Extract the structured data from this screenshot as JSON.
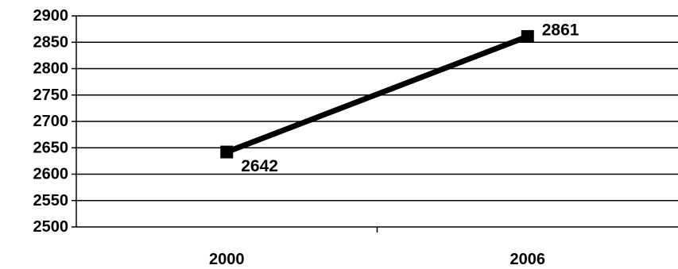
{
  "chart_data": {
    "type": "line",
    "title": "",
    "xlabel": "",
    "ylabel": "",
    "categories": [
      "2000",
      "2006"
    ],
    "series": [
      {
        "values": [
          2642,
          2861
        ],
        "color": "#000000",
        "marker": "square"
      }
    ],
    "data_labels": [
      "2642",
      "2861"
    ],
    "ylim": [
      2500,
      2900
    ],
    "yticks": [
      2500,
      2550,
      2600,
      2650,
      2700,
      2750,
      2800,
      2850,
      2900
    ],
    "ytick_labels": [
      "2500",
      "2550",
      "2600",
      "2650",
      "2700",
      "2750",
      "2800",
      "2850",
      "2900"
    ],
    "grid": true,
    "legend": "none"
  }
}
